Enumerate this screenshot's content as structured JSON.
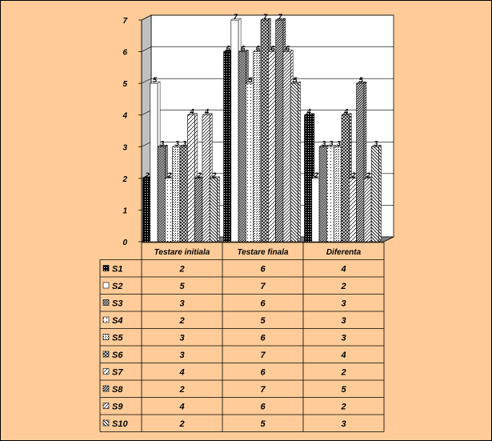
{
  "chart_data": {
    "type": "bar",
    "title": "",
    "xlabel": "",
    "ylabel": "",
    "ylim": [
      0,
      7
    ],
    "yticks": [
      "0",
      "1",
      "2",
      "3",
      "4",
      "5",
      "6",
      "7"
    ],
    "grid": true,
    "legend_placement": "table-below",
    "categories": [
      "Testare initiala",
      "Testare finala",
      "Diferenta"
    ],
    "series": [
      {
        "name": "S1",
        "values": [
          2,
          6,
          4
        ],
        "pattern": "dark-dots",
        "color": "#000000"
      },
      {
        "name": "S2",
        "values": [
          5,
          7,
          2
        ],
        "pattern": "white",
        "color": "#ffffff"
      },
      {
        "name": "S3",
        "values": [
          3,
          6,
          3
        ],
        "pattern": "checker",
        "color": "#000000"
      },
      {
        "name": "S4",
        "values": [
          2,
          5,
          3
        ],
        "pattern": "sparse-dots",
        "color": "#ffffff"
      },
      {
        "name": "S5",
        "values": [
          3,
          6,
          3
        ],
        "pattern": "medium-dots",
        "color": "#808080"
      },
      {
        "name": "S6",
        "values": [
          3,
          7,
          4
        ],
        "pattern": "crosshatch",
        "color": "#808080"
      },
      {
        "name": "S7",
        "values": [
          4,
          6,
          2
        ],
        "pattern": "diag-light",
        "color": "#ffffff"
      },
      {
        "name": "S8",
        "values": [
          2,
          7,
          5
        ],
        "pattern": "diag-dense",
        "color": "#000000"
      },
      {
        "name": "S9",
        "values": [
          4,
          6,
          2
        ],
        "pattern": "diag-medium",
        "color": "#ffffff"
      },
      {
        "name": "S10",
        "values": [
          2,
          5,
          3
        ],
        "pattern": "diag-back",
        "color": "#000000"
      }
    ]
  },
  "colors": {
    "background": "#ffcc99",
    "plot_wall": "#ffffff",
    "floor": "#808080",
    "grid": "#000000"
  }
}
